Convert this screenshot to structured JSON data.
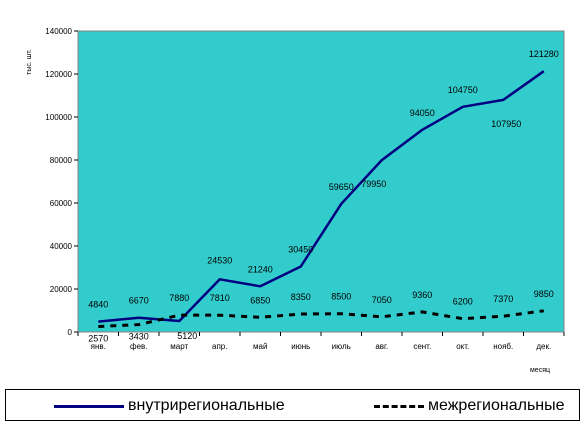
{
  "chart_data": {
    "type": "line",
    "categories": [
      "янв.",
      "фев.",
      "март",
      "апр.",
      "май",
      "июнь",
      "июль",
      "авг.",
      "сент.",
      "окт.",
      "нояб.",
      "дек."
    ],
    "ylabel": "тыс. шт.",
    "xlabel": "месяц",
    "ylim": [
      0,
      140000
    ],
    "yticks": [
      "0",
      "20000",
      "40000",
      "60000",
      "80000",
      "100000",
      "120000",
      "140000"
    ],
    "grid": false,
    "plot_background": "#33CCCC",
    "legend_position": "bottom",
    "series": [
      {
        "name": "внутрирегиональные",
        "color": "#000080",
        "style": "solid",
        "values": [
          4840,
          6670,
          5120,
          24530,
          21240,
          30450,
          59650,
          79950,
          94050,
          104750,
          107950,
          121280
        ],
        "labels": [
          "4840",
          "6670",
          "5120",
          "24530",
          "21240",
          "30450",
          "59650",
          "79950",
          "94050",
          "104750",
          "107950",
          "121280"
        ]
      },
      {
        "name": "межрегиональные",
        "color": "#000000",
        "style": "dashed",
        "values": [
          2570,
          3430,
          7880,
          7810,
          6850,
          8350,
          8500,
          7050,
          9360,
          6200,
          7370,
          9850
        ],
        "labels": [
          "2570",
          "3430",
          "7880",
          "7810",
          "6850",
          "8350",
          "8500",
          "7050",
          "9360",
          "6200",
          "7370",
          "9850"
        ]
      }
    ]
  }
}
